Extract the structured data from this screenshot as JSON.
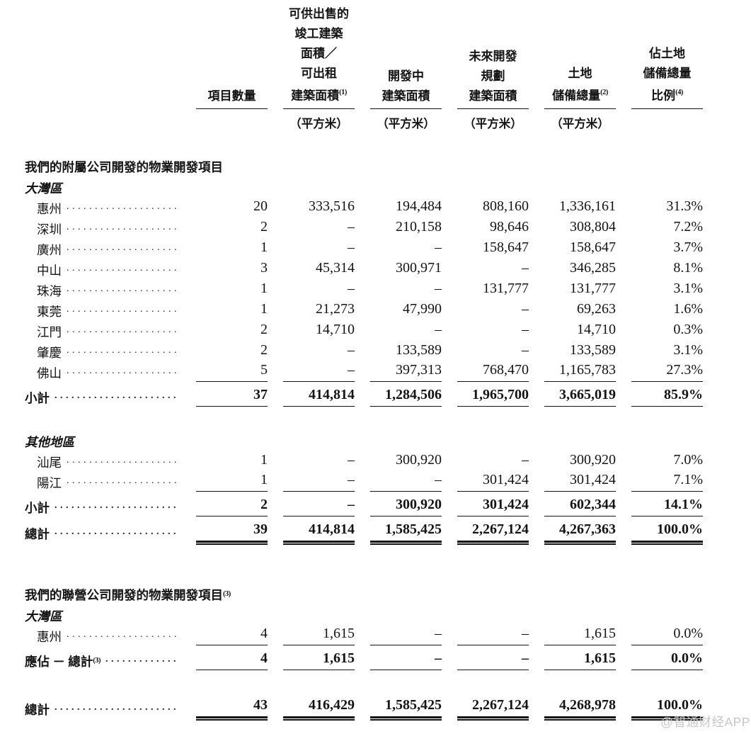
{
  "table": {
    "columns": [
      {
        "lines": [
          "項目數量"
        ],
        "sup": "",
        "unit": ""
      },
      {
        "lines": [
          "可供出售的",
          "竣工建築",
          "面積／",
          "可出租",
          "建築面積"
        ],
        "sup": "(1)",
        "unit": "（平方米）"
      },
      {
        "lines": [
          "開發中",
          "建築面積"
        ],
        "sup": "",
        "unit": "（平方米）"
      },
      {
        "lines": [
          "未來開發",
          "規劃",
          "建築面積"
        ],
        "sup": "",
        "unit": "（平方米）"
      },
      {
        "lines": [
          "土地",
          "儲備總量"
        ],
        "sup": "(2)",
        "unit": "（平方米）"
      },
      {
        "lines": [
          "佔土地",
          "儲備總量",
          "比例"
        ],
        "sup": "(4)",
        "unit": ""
      }
    ],
    "rows": [
      {
        "type": "section",
        "label": "我們的附屬公司開發的物業開發項目",
        "sup": ""
      },
      {
        "type": "region",
        "label": "大灣區"
      },
      {
        "type": "data",
        "label": "惠州",
        "values": [
          "20",
          "333,516",
          "194,484",
          "808,160",
          "1,336,161",
          "31.3%"
        ]
      },
      {
        "type": "data",
        "label": "深圳",
        "values": [
          "2",
          "–",
          "210,158",
          "98,646",
          "308,804",
          "7.2%"
        ]
      },
      {
        "type": "data",
        "label": "廣州",
        "values": [
          "1",
          "–",
          "–",
          "158,647",
          "158,647",
          "3.7%"
        ]
      },
      {
        "type": "data",
        "label": "中山",
        "values": [
          "3",
          "45,314",
          "300,971",
          "–",
          "346,285",
          "8.1%"
        ]
      },
      {
        "type": "data",
        "label": "珠海",
        "values": [
          "1",
          "–",
          "–",
          "131,777",
          "131,777",
          "3.1%"
        ]
      },
      {
        "type": "data",
        "label": "東莞",
        "values": [
          "1",
          "21,273",
          "47,990",
          "–",
          "69,263",
          "1.6%"
        ]
      },
      {
        "type": "data",
        "label": "江門",
        "values": [
          "2",
          "14,710",
          "–",
          "–",
          "14,710",
          "0.3%"
        ]
      },
      {
        "type": "data",
        "label": "肇慶",
        "values": [
          "2",
          "–",
          "133,589",
          "–",
          "133,589",
          "3.1%"
        ]
      },
      {
        "type": "data",
        "label": "佛山",
        "rule": true,
        "values": [
          "5",
          "–",
          "397,313",
          "768,470",
          "1,165,783",
          "27.3%"
        ]
      },
      {
        "type": "subtotal",
        "label": "小計",
        "sup": "",
        "values": [
          "37",
          "414,814",
          "1,284,506",
          "1,965,700",
          "3,665,019",
          "85.9%"
        ]
      },
      {
        "type": "region",
        "label": "其他地區"
      },
      {
        "type": "data",
        "label": "汕尾",
        "values": [
          "1",
          "–",
          "300,920",
          "–",
          "300,920",
          "7.0%"
        ]
      },
      {
        "type": "data",
        "label": "陽江",
        "rule": true,
        "values": [
          "1",
          "–",
          "–",
          "301,424",
          "301,424",
          "7.1%"
        ]
      },
      {
        "type": "subtotal",
        "label": "小計",
        "sup": "",
        "values": [
          "2",
          "–",
          "300,920",
          "301,424",
          "602,344",
          "14.1%"
        ]
      },
      {
        "type": "total",
        "label": "總計",
        "sup": "",
        "values": [
          "39",
          "414,814",
          "1,585,425",
          "2,267,124",
          "4,267,363",
          "100.0%"
        ]
      },
      {
        "type": "section",
        "label": "我們的聯營公司開發的物業開發項目",
        "sup": "(3)"
      },
      {
        "type": "region",
        "label": "大灣區"
      },
      {
        "type": "data",
        "label": "惠州",
        "rule": true,
        "values": [
          "4",
          "1,615",
          "–",
          "–",
          "1,615",
          "0.0%"
        ]
      },
      {
        "type": "subtotal",
        "label": "應佔 － 總計",
        "sup": "(3)",
        "values": [
          "4",
          "1,615",
          "–",
          "–",
          "1,615",
          "0.0%"
        ]
      },
      {
        "type": "grand",
        "label": "總計",
        "sup": "",
        "values": [
          "43",
          "416,429",
          "1,585,425",
          "2,267,124",
          "4,268,978",
          "100.0%"
        ]
      }
    ]
  },
  "watermark": "@智通财经APP"
}
